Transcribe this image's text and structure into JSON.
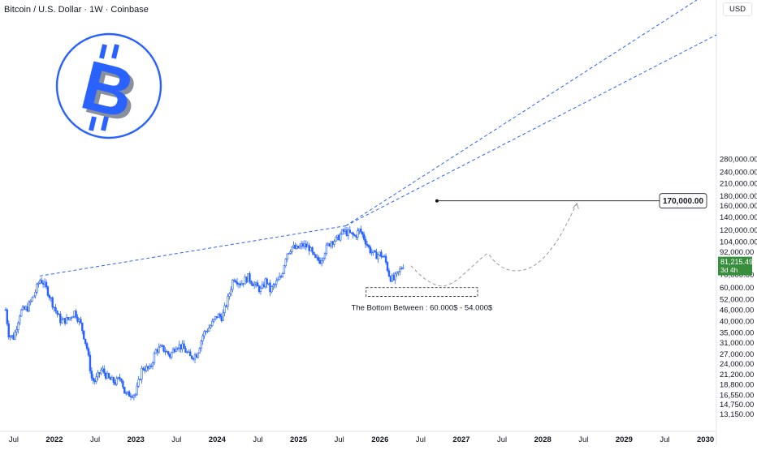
{
  "header": {
    "title": "Bitcoin / U.S. Dollar · 1W · Coinbase",
    "currency_button": "USD"
  },
  "colors": {
    "candle": "#2962ff",
    "trendline": "#2962ff",
    "projection": "#999999",
    "price_tag": "#388e3c",
    "logo": "#2962ff",
    "grid": "#f0f3fa"
  },
  "logo": {
    "icon": "bitcoin-logo-icon",
    "glyph": "B"
  },
  "chart_data": {
    "type": "candlestick",
    "title": "Bitcoin / U.S. Dollar · 1W · Coinbase",
    "y_scale": "log",
    "ylim": [
      13150,
      330000
    ],
    "xlim": [
      2021.4,
      2030.0
    ],
    "grid": false,
    "x_ticks": [
      {
        "x": 2021.5,
        "label": "Jul"
      },
      {
        "x": 2022.0,
        "label": "2022"
      },
      {
        "x": 2022.5,
        "label": "Jul"
      },
      {
        "x": 2023.0,
        "label": "2023"
      },
      {
        "x": 2023.5,
        "label": "Jul"
      },
      {
        "x": 2024.0,
        "label": "2024"
      },
      {
        "x": 2024.5,
        "label": "Jul"
      },
      {
        "x": 2025.0,
        "label": "2025"
      },
      {
        "x": 2025.5,
        "label": "Jul"
      },
      {
        "x": 2026.0,
        "label": "2026"
      },
      {
        "x": 2026.5,
        "label": "Jul"
      },
      {
        "x": 2027.0,
        "label": "2027"
      },
      {
        "x": 2027.5,
        "label": "Jul"
      },
      {
        "x": 2028.0,
        "label": "2028"
      },
      {
        "x": 2028.5,
        "label": "Jul"
      },
      {
        "x": 2029.0,
        "label": "2029"
      },
      {
        "x": 2029.5,
        "label": "Jul"
      },
      {
        "x": 2030.0,
        "label": "2030"
      }
    ],
    "y_ticks": [
      {
        "value": 280000,
        "label": "280,000.00"
      },
      {
        "value": 240000,
        "label": "240,000.00"
      },
      {
        "value": 210000,
        "label": "210,000.00"
      },
      {
        "value": 180000,
        "label": "180,000.00"
      },
      {
        "value": 160000,
        "label": "160,000.00"
      },
      {
        "value": 140000,
        "label": "140,000.00"
      },
      {
        "value": 120000,
        "label": "120,000.00"
      },
      {
        "value": 104000,
        "label": "104,000.00"
      },
      {
        "value": 92000,
        "label": "92,000.00"
      },
      {
        "value": 70000,
        "label": "70,000.00"
      },
      {
        "value": 60000,
        "label": "60,000.00"
      },
      {
        "value": 52000,
        "label": "52,000.00"
      },
      {
        "value": 46000,
        "label": "46,000.00"
      },
      {
        "value": 40000,
        "label": "40,000.00"
      },
      {
        "value": 35000,
        "label": "35,000.00"
      },
      {
        "value": 31000,
        "label": "31,000.00"
      },
      {
        "value": 27000,
        "label": "27,000.00"
      },
      {
        "value": 24000,
        "label": "24,000.00"
      },
      {
        "value": 21200,
        "label": "21,200.00"
      },
      {
        "value": 18800,
        "label": "18,800.00"
      },
      {
        "value": 16550,
        "label": "16,550.00"
      },
      {
        "value": 14750,
        "label": "14,750.00"
      },
      {
        "value": 13150,
        "label": "13,150.00"
      }
    ],
    "price_anchors": [
      [
        2021.4,
        46000
      ],
      [
        2021.44,
        34000
      ],
      [
        2021.5,
        33000
      ],
      [
        2021.58,
        45000
      ],
      [
        2021.67,
        47000
      ],
      [
        2021.75,
        55000
      ],
      [
        2021.82,
        66000
      ],
      [
        2021.86,
        64000
      ],
      [
        2021.92,
        57000
      ],
      [
        2022.0,
        47000
      ],
      [
        2022.08,
        40000
      ],
      [
        2022.17,
        41000
      ],
      [
        2022.25,
        45000
      ],
      [
        2022.33,
        38000
      ],
      [
        2022.4,
        29000
      ],
      [
        2022.46,
        20000
      ],
      [
        2022.5,
        19500
      ],
      [
        2022.58,
        22500
      ],
      [
        2022.67,
        20000
      ],
      [
        2022.75,
        19200
      ],
      [
        2022.82,
        20500
      ],
      [
        2022.87,
        16500
      ],
      [
        2022.95,
        16800
      ],
      [
        2023.0,
        16700
      ],
      [
        2023.08,
        23000
      ],
      [
        2023.17,
        22500
      ],
      [
        2023.25,
        28500
      ],
      [
        2023.33,
        29000
      ],
      [
        2023.42,
        26500
      ],
      [
        2023.5,
        30300
      ],
      [
        2023.58,
        29200
      ],
      [
        2023.67,
        26000
      ],
      [
        2023.75,
        27000
      ],
      [
        2023.83,
        34500
      ],
      [
        2023.92,
        38000
      ],
      [
        2024.0,
        43000
      ],
      [
        2024.06,
        42000
      ],
      [
        2024.13,
        52000
      ],
      [
        2024.2,
        68000
      ],
      [
        2024.29,
        63000
      ],
      [
        2024.38,
        68000
      ],
      [
        2024.46,
        62000
      ],
      [
        2024.54,
        58000
      ],
      [
        2024.6,
        66000
      ],
      [
        2024.65,
        58000
      ],
      [
        2024.72,
        63000
      ],
      [
        2024.79,
        69000
      ],
      [
        2024.85,
        90000
      ],
      [
        2024.92,
        98000
      ],
      [
        2024.97,
        95000
      ],
      [
        2025.05,
        100000
      ],
      [
        2025.13,
        97000
      ],
      [
        2025.2,
        84000
      ],
      [
        2025.27,
        83000
      ],
      [
        2025.33,
        95000
      ],
      [
        2025.4,
        105000
      ],
      [
        2025.47,
        107000
      ],
      [
        2025.55,
        118000
      ],
      [
        2025.62,
        115000
      ],
      [
        2025.69,
        111000
      ],
      [
        2025.75,
        120000
      ],
      [
        2025.8,
        110000
      ],
      [
        2025.87,
        95000
      ],
      [
        2025.94,
        88000
      ],
      [
        2026.0,
        90000
      ],
      [
        2026.06,
        85000
      ],
      [
        2026.12,
        68000
      ],
      [
        2026.17,
        66000
      ],
      [
        2026.23,
        72000
      ],
      [
        2026.3,
        81215
      ]
    ],
    "last_price": {
      "value": 81215.49,
      "label": "81,215.49",
      "countdown": "3d 4h"
    },
    "trendlines": [
      {
        "name": "upper",
        "from": [
          2021.82,
          69000
        ],
        "to": [
          2025.58,
          126000
        ]
      },
      {
        "name": "lower",
        "from": [
          2021.82,
          69000
        ],
        "to": [
          2025.58,
          126000
        ]
      }
    ],
    "target": {
      "value": 170000,
      "label": "170,000.00",
      "from_x": 2026.7
    },
    "projection": [
      [
        2026.38,
        78000
      ],
      [
        2026.55,
        66000
      ],
      [
        2026.75,
        60000
      ],
      [
        2026.92,
        64000
      ],
      [
        2027.1,
        75000
      ],
      [
        2027.28,
        88000
      ],
      [
        2027.33,
        91000
      ],
      [
        2027.4,
        82000
      ],
      [
        2027.55,
        74000
      ],
      [
        2027.75,
        73000
      ],
      [
        2027.95,
        80000
      ],
      [
        2028.15,
        100000
      ],
      [
        2028.3,
        130000
      ],
      [
        2028.42,
        165000
      ]
    ],
    "bottom_zone": {
      "y_top": 60000,
      "y_bottom": 54000,
      "x_from": 2025.83,
      "x_to": 2027.2
    },
    "annotations": {
      "bottom_text": "The Bottom Between : 60.000$ - 54.000$"
    }
  }
}
